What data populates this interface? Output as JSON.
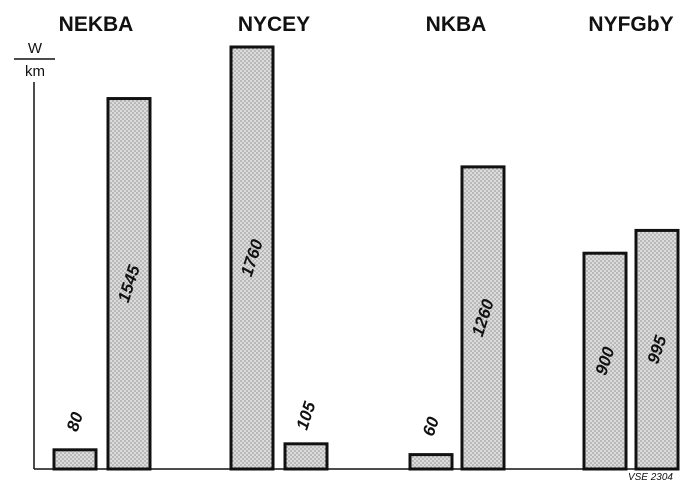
{
  "chart_data": {
    "type": "bar",
    "categories": [
      "NEKBA",
      "NYCEY",
      "NKBA",
      "NYFGbY"
    ],
    "unit_numerator": "W",
    "unit_denominator": "km",
    "series": [
      {
        "values": [
          80,
          1760,
          60,
          900
        ]
      },
      {
        "values": [
          1545,
          105,
          1260,
          995
        ]
      }
    ],
    "value_labels": [
      [
        "80",
        "1545"
      ],
      [
        "1760",
        "105"
      ],
      [
        "60",
        "1260"
      ],
      [
        "900",
        "995"
      ]
    ],
    "ylim": [
      0,
      1760
    ],
    "grid": false,
    "legend": "none",
    "reference_code": "VSE 2304",
    "colors": {
      "ink": "#111111",
      "bar_fill": "#dcdcdc",
      "dot": "#8a8a8a"
    }
  }
}
